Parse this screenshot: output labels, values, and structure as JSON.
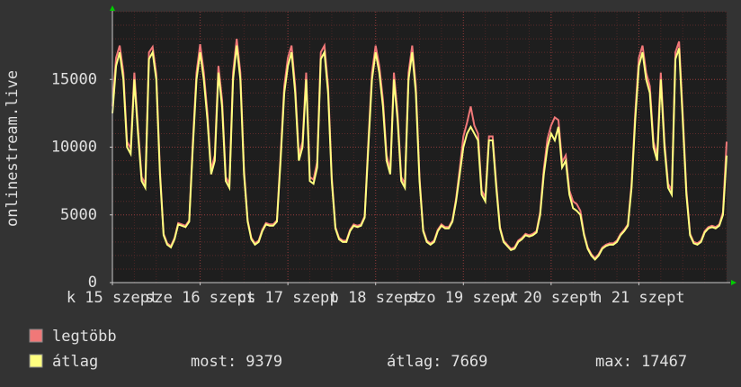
{
  "chart_data": {
    "type": "line",
    "ylabel": "onlinestream.live",
    "x": [
      0,
      1,
      2,
      3,
      4,
      5,
      6,
      7,
      8,
      9,
      10,
      11,
      12,
      13,
      14,
      15,
      16,
      17,
      18,
      19,
      20,
      21,
      22,
      23,
      24,
      25,
      26,
      27,
      28,
      29,
      30,
      31,
      32,
      33,
      34,
      35,
      36,
      37,
      38,
      39,
      40,
      41,
      42,
      43,
      44,
      45,
      46,
      47,
      48,
      49,
      50,
      51,
      52,
      53,
      54,
      55,
      56,
      57,
      58,
      59,
      60,
      61,
      62,
      63,
      64,
      65,
      66,
      67,
      68,
      69,
      70,
      71,
      72,
      73,
      74,
      75,
      76,
      77,
      78,
      79,
      80,
      81,
      82,
      83,
      84,
      85,
      86,
      87,
      88,
      89,
      90,
      91,
      92,
      93,
      94,
      95,
      96,
      97,
      98,
      99,
      100,
      101,
      102,
      103,
      104,
      105,
      106,
      107,
      108,
      109,
      110,
      111,
      112,
      113,
      114,
      115,
      116,
      117,
      118,
      119,
      120,
      121,
      122,
      123,
      124,
      125,
      126,
      127,
      128,
      129,
      130,
      131,
      132,
      133,
      134,
      135,
      136,
      137,
      138,
      139,
      140,
      141,
      142,
      143,
      144,
      145,
      146,
      147,
      148,
      149,
      150,
      151,
      152,
      153,
      154,
      155,
      156,
      157,
      158,
      159,
      160,
      161,
      162,
      163,
      164,
      165,
      166,
      167,
      168
    ],
    "xlim": [
      0,
      168
    ],
    "xticks": [
      {
        "value": 0,
        "label": "k 15 szept"
      },
      {
        "value": 24,
        "label": "sze 16 szept"
      },
      {
        "value": 48,
        "label": "cs 17 szept"
      },
      {
        "value": 72,
        "label": "p 18 szept"
      },
      {
        "value": 96,
        "label": "szo 19 szept"
      },
      {
        "value": 120,
        "label": "v 20 szept"
      },
      {
        "value": 144,
        "label": "h 21 szept"
      }
    ],
    "ylim": [
      0,
      20000
    ],
    "yticks": [
      0,
      5000,
      10000,
      15000
    ],
    "grid": true,
    "series": [
      {
        "name": "legtöbb",
        "color": "#f07878",
        "values": [
          13000,
          16600,
          17500,
          15500,
          10400,
          9900,
          15500,
          11400,
          7800,
          7300,
          17000,
          17400,
          15400,
          8300,
          3600,
          2900,
          2700,
          3300,
          4400,
          4300,
          4200,
          4600,
          10400,
          15500,
          17600,
          15500,
          12500,
          8300,
          9400,
          16000,
          13500,
          7800,
          7300,
          15500,
          18000,
          15500,
          8300,
          4600,
          3300,
          2900,
          3100,
          3900,
          4400,
          4300,
          4300,
          4600,
          9400,
          14500,
          16600,
          17500,
          14500,
          9400,
          10400,
          15500,
          7800,
          7600,
          8900,
          17000,
          17500,
          14500,
          7800,
          4100,
          3300,
          3100,
          3100,
          3900,
          4300,
          4200,
          4300,
          4900,
          10400,
          15500,
          17500,
          16000,
          13500,
          9400,
          8300,
          15500,
          12500,
          7800,
          7300,
          15500,
          17500,
          14500,
          7800,
          3900,
          3100,
          2900,
          3100,
          3900,
          4300,
          4100,
          4100,
          4600,
          6200,
          8400,
          10800,
          11800,
          13000,
          11600,
          11000,
          6800,
          6300,
          10800,
          10800,
          7300,
          4100,
          3100,
          2800,
          2500,
          2600,
          3100,
          3300,
          3600,
          3500,
          3600,
          3800,
          5200,
          8400,
          10600,
          11600,
          12200,
          12000,
          8900,
          9400,
          6800,
          6000,
          5800,
          5300,
          3600,
          2600,
          2100,
          1800,
          2100,
          2600,
          2800,
          2900,
          2900,
          3100,
          3600,
          3900,
          4300,
          7300,
          12500,
          16600,
          17500,
          15500,
          14500,
          10400,
          9400,
          15500,
          10400,
          7300,
          6800,
          17000,
          17800,
          12500,
          6800,
          3600,
          3000,
          2900,
          3100,
          3800,
          4100,
          4200,
          4100,
          4300,
          5200,
          10400
        ]
      },
      {
        "name": "átlag",
        "color": "#ffff80",
        "values": [
          12500,
          16000,
          17000,
          15000,
          10000,
          9500,
          15000,
          11000,
          7500,
          7000,
          16500,
          17000,
          15000,
          8000,
          3500,
          2800,
          2600,
          3200,
          4300,
          4200,
          4100,
          4500,
          10000,
          15000,
          17000,
          15000,
          12000,
          8000,
          9000,
          15500,
          13000,
          7500,
          7000,
          15000,
          17500,
          15000,
          8000,
          4500,
          3200,
          2800,
          3000,
          3800,
          4300,
          4200,
          4200,
          4500,
          9000,
          14000,
          16000,
          17000,
          14000,
          9000,
          10000,
          15000,
          7500,
          7300,
          8500,
          16500,
          17000,
          14000,
          7500,
          4000,
          3200,
          3000,
          3000,
          3800,
          4200,
          4100,
          4200,
          4800,
          10000,
          15000,
          17000,
          15500,
          13000,
          9000,
          8000,
          15000,
          12000,
          7500,
          7000,
          15000,
          17000,
          14000,
          7500,
          3800,
          3000,
          2800,
          3000,
          3800,
          4200,
          4000,
          4000,
          4500,
          6000,
          8000,
          10000,
          11000,
          11500,
          11000,
          10500,
          6500,
          6000,
          10500,
          10500,
          7000,
          4000,
          3000,
          2700,
          2400,
          2500,
          3000,
          3200,
          3500,
          3400,
          3500,
          3700,
          5000,
          8000,
          10000,
          11000,
          10500,
          11500,
          8500,
          9000,
          6500,
          5500,
          5300,
          5000,
          3500,
          2500,
          2000,
          1700,
          2000,
          2500,
          2700,
          2800,
          2800,
          3000,
          3500,
          3800,
          4200,
          7000,
          12000,
          16000,
          17000,
          15000,
          14000,
          10000,
          9000,
          15000,
          10000,
          7000,
          6500,
          16500,
          17300,
          12000,
          6500,
          3500,
          2900,
          2800,
          3000,
          3700,
          4000,
          4100,
          4000,
          4200,
          5000,
          9379
        ]
      }
    ],
    "stats": [
      {
        "label": "most:",
        "value": 9379
      },
      {
        "label": "átlag:",
        "value": 7669
      },
      {
        "label": "max:",
        "value": 17467
      }
    ]
  }
}
